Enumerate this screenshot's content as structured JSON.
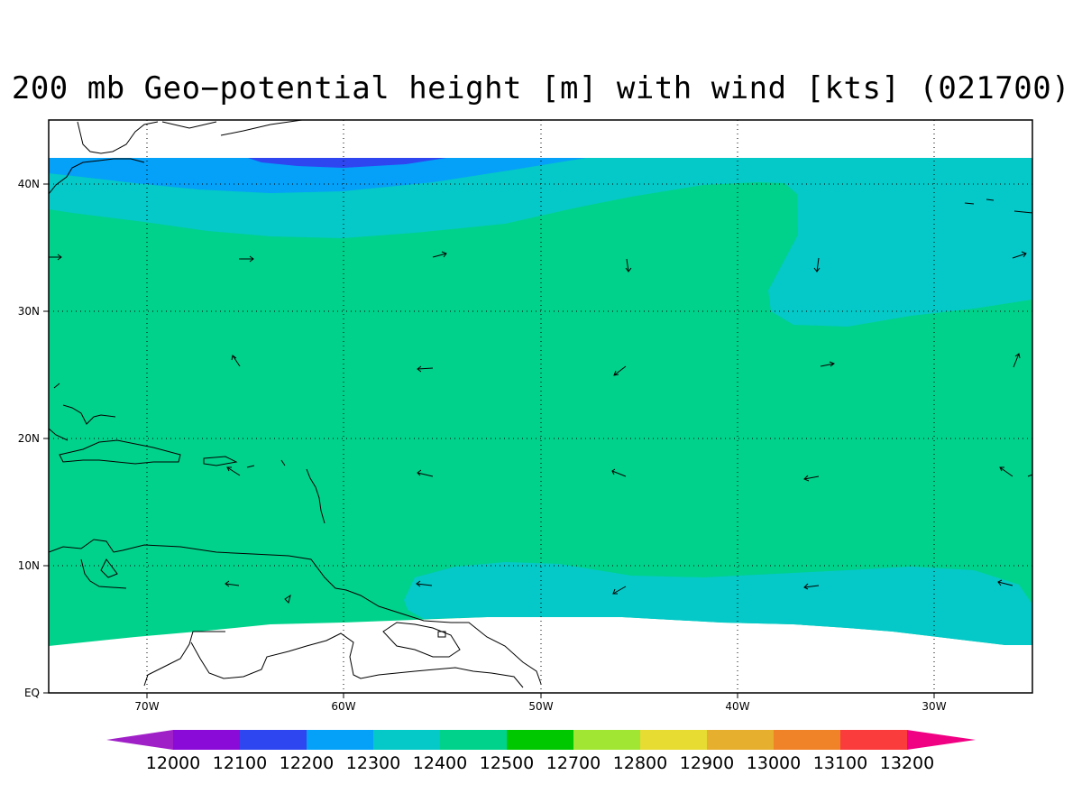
{
  "title": "200 mb Geo−potential height [m] with wind [kts] (021700)",
  "map": {
    "extent": {
      "lon_min": -75,
      "lon_max": -25,
      "lat_min": 0,
      "lat_max": 45
    },
    "lat_ticks": [
      {
        "value": 0,
        "label": "EQ"
      },
      {
        "value": 10,
        "label": "10N"
      },
      {
        "value": 20,
        "label": "20N"
      },
      {
        "value": 30,
        "label": "30N"
      },
      {
        "value": 40,
        "label": "40N"
      }
    ],
    "lon_ticks": [
      {
        "value": -70,
        "label": "70W"
      },
      {
        "value": -60,
        "label": "60W"
      },
      {
        "value": -50,
        "label": "50W"
      },
      {
        "value": -40,
        "label": "40W"
      },
      {
        "value": -30,
        "label": "30W"
      }
    ],
    "grid": "dotted",
    "wind_vectors_kts_direction": "arrows"
  },
  "colorbar": {
    "levels": [
      "12000",
      "12100",
      "12200",
      "12300",
      "12400",
      "12500",
      "12700",
      "12800",
      "12900",
      "13000",
      "13100",
      "13200"
    ],
    "colors": [
      "#a020c8",
      "#8a0ad8",
      "#2e46f0",
      "#05a0f8",
      "#05c8c8",
      "#00d28c",
      "#00c800",
      "#a0e632",
      "#e6dc32",
      "#e6af2d",
      "#f08228",
      "#fa3c3c",
      "#f00082"
    ]
  },
  "fill_colors": {
    "height_12100_12200": "#2e46f0",
    "height_12200_12300": "#05a0f8",
    "height_12300_12400": "#05c8c8",
    "height_12400_12500": "#00d28c"
  }
}
